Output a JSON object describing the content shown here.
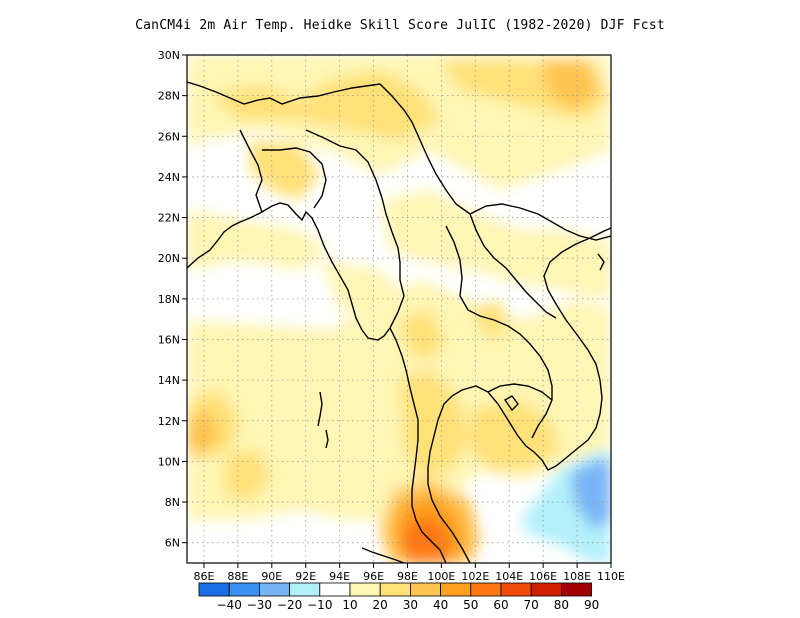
{
  "title": "CanCM4i  2m Air Temp. Heidke Skill Score JulIC (1982-2020) DJF Fcst",
  "axes": {
    "lon_ticks": [
      "86E",
      "88E",
      "90E",
      "92E",
      "94E",
      "96E",
      "98E",
      "100E",
      "102E",
      "104E",
      "106E",
      "108E",
      "110E"
    ],
    "lon_values": [
      86,
      88,
      90,
      92,
      94,
      96,
      98,
      100,
      102,
      104,
      106,
      108,
      110
    ],
    "lat_ticks": [
      "6N",
      "8N",
      "10N",
      "12N",
      "14N",
      "16N",
      "18N",
      "20N",
      "22N",
      "24N",
      "26N",
      "28N",
      "30N"
    ],
    "lat_values": [
      6,
      8,
      10,
      12,
      14,
      16,
      18,
      20,
      22,
      24,
      26,
      28,
      30
    ],
    "lon_range": [
      85,
      110
    ],
    "lat_range": [
      5,
      30
    ],
    "grid": "dotted"
  },
  "colorbar": {
    "labels": [
      "-40",
      "-30",
      "-20",
      "-10",
      "10",
      "20",
      "30",
      "40",
      "50",
      "60",
      "70",
      "80",
      "90"
    ],
    "colors": [
      "#1e6fe6",
      "#3a8ff0",
      "#78b4f5",
      "#b4f0fa",
      "#ffffff",
      "#fff5b4",
      "#ffe178",
      "#ffc350",
      "#ffa01e",
      "#ff7814",
      "#f04b0a",
      "#d21e00",
      "#a00000"
    ]
  },
  "chart_data": {
    "type": "heatmap",
    "title": "CanCM4i  2m Air Temp. Heidke Skill Score JulIC (1982-2020) DJF Fcst",
    "xlabel": "",
    "ylabel": "",
    "x_range": [
      85,
      110
    ],
    "y_range": [
      5,
      30
    ],
    "levels": [
      -40,
      -30,
      -20,
      -10,
      10,
      20,
      30,
      40,
      50,
      60,
      70,
      80,
      90
    ],
    "notable_regions": [
      {
        "label": "",
        "lon_center": 99.2,
        "lat_center": 6.0,
        "value": 55
      },
      {
        "label": "",
        "lon_center": 107.0,
        "lat_center": 8.0,
        "value": -20
      },
      {
        "label": "",
        "lon_center": 104.0,
        "lat_center": 29.0,
        "value": 30
      }
    ]
  }
}
